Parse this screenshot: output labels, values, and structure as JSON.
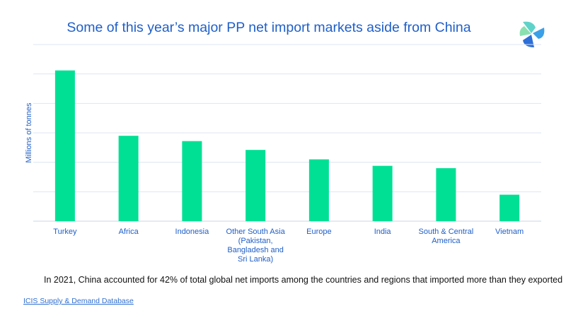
{
  "chart_data": {
    "type": "bar",
    "title": "Some of this year’s major PP net import markets aside from China",
    "ylabel": "Millions of tonnes",
    "xlabel": "",
    "categories": [
      "Turkey",
      "Africa",
      "Indonesia",
      "Other South Asia (Pakistan, Bangladesh and Sri Lanka)",
      "Europe",
      "India",
      "South & Central America",
      "Vietnam"
    ],
    "values": [
      2.56,
      1.45,
      1.36,
      1.21,
      1.05,
      0.94,
      0.9,
      0.45
    ],
    "ylim": [
      0,
      3
    ],
    "grid": true,
    "colors": {
      "bar": "#00e095",
      "grid": "#dde6f3",
      "text": "#1f5fc8"
    }
  },
  "note": "In 2021, China accounted for 42% of total global net imports among the countries and regions that imported more than they exported",
  "source_link": "ICIS Supply & Demand Database",
  "logo_icon": "icis-logo-icon"
}
